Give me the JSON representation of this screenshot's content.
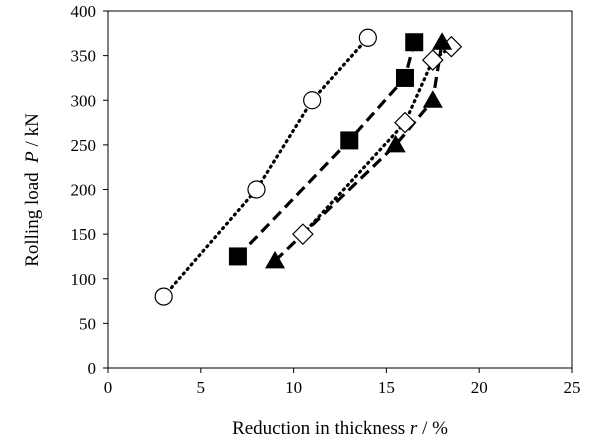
{
  "chart_data": {
    "type": "scatter",
    "title": "",
    "xlabel": {
      "prefix": "Reduction in thickness ",
      "symbol": "r",
      "suffix": " / %"
    },
    "ylabel": {
      "prefix": "Rolling load  ",
      "symbol": "P",
      "suffix": " / kN"
    },
    "xlim": [
      0,
      25
    ],
    "ylim": [
      0,
      400
    ],
    "x_ticks": [
      0,
      5,
      10,
      15,
      20,
      25
    ],
    "y_ticks": [
      0,
      50,
      100,
      150,
      200,
      250,
      300,
      350,
      400
    ],
    "grid": false,
    "legend": "none",
    "series": [
      {
        "marker": "open-circle",
        "line": "dotted",
        "points": [
          [
            3,
            80
          ],
          [
            8,
            200
          ],
          [
            11,
            300
          ],
          [
            14,
            370
          ]
        ]
      },
      {
        "marker": "filled-square",
        "line": "dashed",
        "points": [
          [
            7,
            125
          ],
          [
            13,
            255
          ],
          [
            16,
            325
          ],
          [
            16.5,
            365
          ]
        ]
      },
      {
        "marker": "open-diamond",
        "line": "dotted",
        "points": [
          [
            10.5,
            150
          ],
          [
            16,
            275
          ],
          [
            17.5,
            345
          ],
          [
            18.5,
            360
          ]
        ]
      },
      {
        "marker": "filled-triangle",
        "line": "dashed",
        "points": [
          [
            9,
            120
          ],
          [
            15.5,
            250
          ],
          [
            17.5,
            300
          ],
          [
            18,
            365
          ]
        ]
      }
    ]
  }
}
